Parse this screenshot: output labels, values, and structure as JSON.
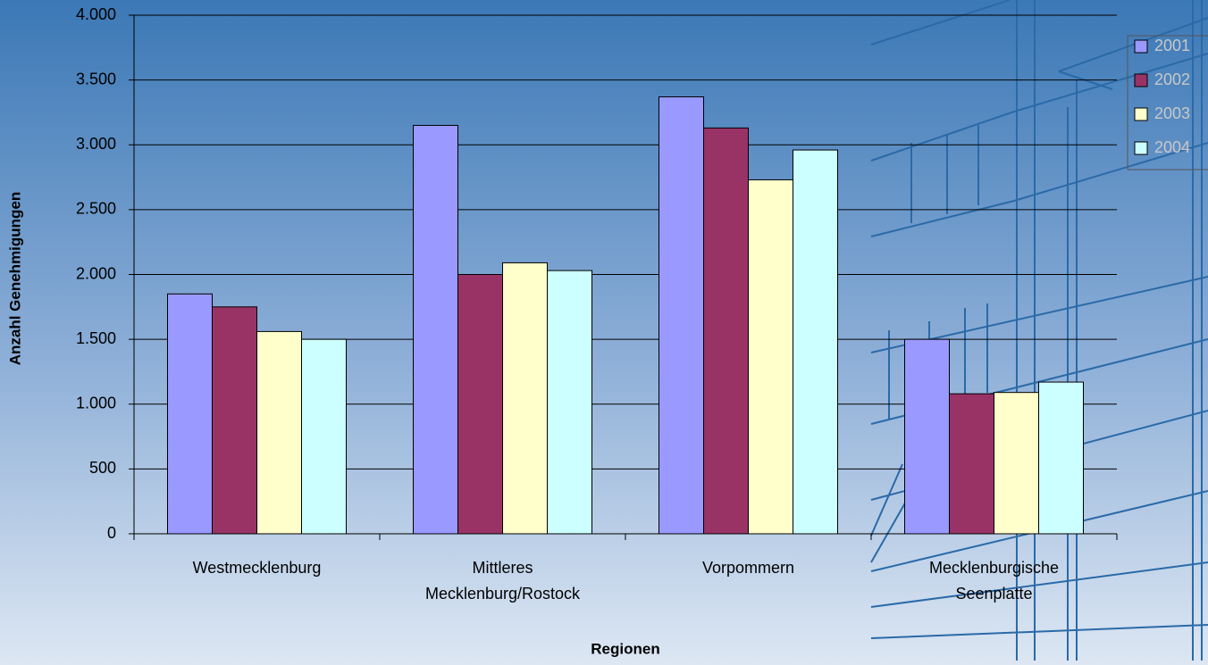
{
  "chart_data": {
    "type": "bar",
    "x_label": "Regionen",
    "y_label": "Anzahl Genehmigungen",
    "categories": [
      "Westmecklenburg",
      "Mittleres Mecklenburg/Rostock",
      "Vorpommern",
      "Mecklenburgische Seenplatte"
    ],
    "series": [
      {
        "name": "2001",
        "color": "#9999ff",
        "values": [
          1850,
          3150,
          3370,
          1500
        ]
      },
      {
        "name": "2002",
        "color": "#993366",
        "values": [
          1750,
          2000,
          3130,
          1080
        ]
      },
      {
        "name": "2003",
        "color": "#ffffcc",
        "values": [
          1560,
          2090,
          2730,
          1090
        ]
      },
      {
        "name": "2004",
        "color": "#ccffff",
        "values": [
          1500,
          2030,
          2960,
          1170
        ]
      }
    ],
    "ylim": [
      0,
      4000
    ],
    "yticks": [
      0,
      500,
      {
        "value": 1000,
        "label": "1.000"
      },
      {
        "value": 1500,
        "label": "1.500"
      },
      {
        "value": 2000,
        "label": "2.000"
      },
      {
        "value": 2500,
        "label": "2.500"
      },
      {
        "value": 3000,
        "label": "3.000"
      },
      {
        "value": 3500,
        "label": "3.500"
      },
      {
        "value": 4000,
        "label": "4.000"
      }
    ],
    "grid": true
  }
}
